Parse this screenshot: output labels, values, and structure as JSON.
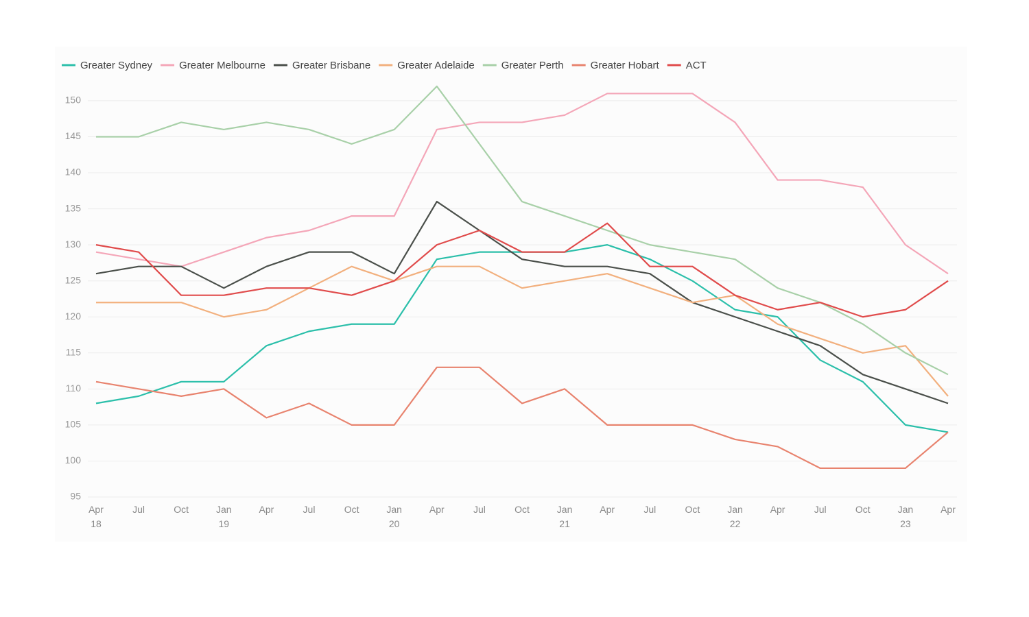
{
  "chart_data": {
    "type": "line",
    "categories": [
      "Apr\n18",
      "Jul",
      "Oct",
      "Jan\n19",
      "Apr",
      "Jul",
      "Oct",
      "Jan\n20",
      "Apr",
      "Jul",
      "Oct",
      "Jan\n21",
      "Apr",
      "Jul",
      "Oct",
      "Jan\n22",
      "Apr",
      "Jul",
      "Oct",
      "Jan\n23",
      "Apr"
    ],
    "series": [
      {
        "name": "Greater Sydney",
        "color": "#2bbfaa",
        "values": [
          108,
          109,
          111,
          111,
          116,
          118,
          119,
          119,
          128,
          129,
          129,
          129,
          130,
          128,
          125,
          121,
          120,
          114,
          111,
          105,
          104
        ]
      },
      {
        "name": "Greater Melbourne",
        "color": "#f4a6b8",
        "values": [
          129,
          128,
          127,
          129,
          131,
          132,
          134,
          134,
          146,
          147,
          147,
          148,
          151,
          151,
          151,
          147,
          139,
          139,
          138,
          130,
          126
        ]
      },
      {
        "name": "Greater Brisbane",
        "color": "#4a4f4a",
        "values": [
          126,
          127,
          127,
          124,
          127,
          129,
          129,
          126,
          136,
          132,
          128,
          127,
          127,
          126,
          122,
          120,
          118,
          116,
          112,
          110,
          108
        ]
      },
      {
        "name": "Greater Adelaide",
        "color": "#f2b07e",
        "values": [
          122,
          122,
          122,
          120,
          121,
          124,
          127,
          125,
          127,
          127,
          124,
          125,
          126,
          124,
          122,
          123,
          119,
          117,
          115,
          116,
          109
        ]
      },
      {
        "name": "Greater Perth",
        "color": "#a8d0a8",
        "values": [
          145,
          145,
          147,
          146,
          147,
          146,
          144,
          146,
          152,
          144,
          136,
          134,
          132,
          130,
          129,
          128,
          124,
          122,
          119,
          115,
          112
        ]
      },
      {
        "name": "Greater Hobart",
        "color": "#e8836e",
        "values": [
          111,
          110,
          109,
          110,
          106,
          108,
          105,
          105,
          113,
          113,
          108,
          110,
          105,
          105,
          105,
          103,
          102,
          99,
          99,
          99,
          104
        ]
      },
      {
        "name": "ACT",
        "color": "#e04b4b",
        "values": [
          130,
          129,
          123,
          123,
          124,
          124,
          123,
          125,
          130,
          132,
          129,
          129,
          133,
          127,
          127,
          123,
          121,
          122,
          120,
          121,
          125
        ]
      }
    ],
    "ylim": [
      95,
      153
    ],
    "yticks": [
      95,
      100,
      105,
      110,
      115,
      120,
      125,
      130,
      135,
      140,
      145,
      150
    ],
    "grid": true
  }
}
